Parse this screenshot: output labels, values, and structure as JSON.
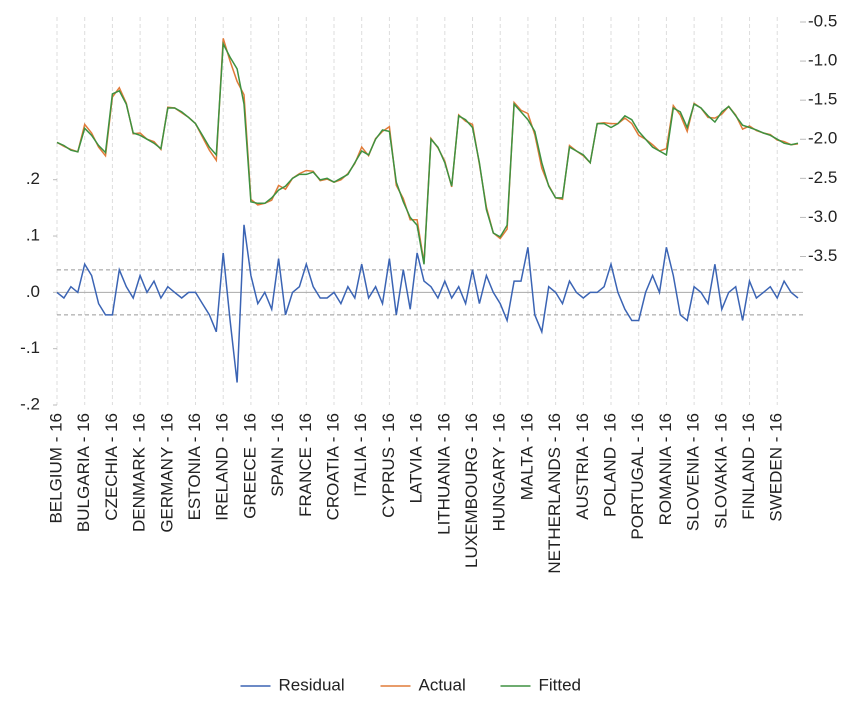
{
  "chart_data": {
    "type": "line",
    "categories": [
      "BELGIUM - 16",
      null,
      null,
      null,
      "BULGARIA - 16",
      null,
      null,
      null,
      "CZECHIA - 16",
      null,
      null,
      null,
      "DENMARK - 16",
      null,
      null,
      null,
      "GERMANY - 16",
      null,
      null,
      null,
      "ESTONIA - 16",
      null,
      null,
      null,
      "IRELAND - 16",
      null,
      null,
      null,
      "GREECE - 16",
      null,
      null,
      null,
      "SPAIN - 16",
      null,
      null,
      null,
      "FRANCE - 16",
      null,
      null,
      null,
      "CROATIA - 16",
      null,
      null,
      null,
      "ITALIA - 16",
      null,
      null,
      null,
      "CYPRUS - 16",
      null,
      null,
      null,
      "LATVIA - 16",
      null,
      null,
      null,
      "LITHUANIA - 16",
      null,
      null,
      null,
      "LUXEMBOURG - 16",
      null,
      null,
      null,
      "HUNGARY - 16",
      null,
      null,
      null,
      "MALTA - 16",
      null,
      null,
      null,
      "NETHERLANDS - 16",
      null,
      null,
      null,
      "AUSTRIA - 16",
      null,
      null,
      null,
      "POLAND - 16",
      null,
      null,
      null,
      "PORTUGAL - 16",
      null,
      null,
      null,
      "ROMANIA - 16",
      null,
      null,
      null,
      "SLOVENIA - 16",
      null,
      null,
      null,
      "SLOVAKIA - 16",
      null,
      null,
      null,
      "FINLAND - 16",
      null,
      null,
      null,
      "SWEDEN - 16",
      null,
      null,
      null
    ],
    "series": [
      {
        "name": "Residual",
        "color": "#3b64b4",
        "axis": "y",
        "values": [
          0.0,
          -0.01,
          0.01,
          0.0,
          0.05,
          0.03,
          -0.02,
          -0.04,
          -0.04,
          0.04,
          0.01,
          -0.01,
          0.03,
          0.0,
          0.02,
          -0.01,
          0.01,
          0.0,
          -0.01,
          0.0,
          0.0,
          -0.02,
          -0.04,
          -0.07,
          0.07,
          -0.05,
          -0.16,
          0.12,
          0.03,
          -0.02,
          0.0,
          -0.03,
          0.06,
          -0.04,
          0.0,
          0.01,
          0.05,
          0.01,
          -0.01,
          -0.01,
          0.0,
          -0.02,
          0.01,
          -0.01,
          0.05,
          -0.01,
          0.01,
          -0.02,
          0.06,
          -0.04,
          0.04,
          -0.03,
          0.07,
          0.02,
          0.01,
          -0.01,
          0.02,
          -0.01,
          0.01,
          -0.02,
          0.04,
          -0.02,
          0.03,
          0.0,
          -0.02,
          -0.05,
          0.02,
          0.02,
          0.08,
          -0.04,
          -0.07,
          0.01,
          0.0,
          -0.02,
          0.02,
          0.0,
          -0.01,
          0.0,
          0.0,
          0.01,
          0.05,
          0.0,
          -0.03,
          -0.05,
          -0.05,
          0.0,
          0.03,
          0.0,
          0.08,
          0.03,
          -0.04,
          -0.05,
          0.01,
          0.0,
          -0.02,
          0.05,
          -0.03,
          0.0,
          0.01,
          -0.05,
          0.02,
          -0.01,
          0.0,
          0.01,
          -0.01,
          0.02,
          0.0,
          -0.01
        ]
      },
      {
        "name": "Actual",
        "color": "#e07b39",
        "axis": "y2",
        "values": [
          -2.04,
          -2.09,
          -2.13,
          -2.16,
          -1.81,
          -1.92,
          -2.1,
          -2.21,
          -1.46,
          -1.34,
          -1.54,
          -1.93,
          -1.92,
          -2.0,
          -2.03,
          -2.13,
          -1.59,
          -1.6,
          -1.66,
          -1.72,
          -1.8,
          -1.97,
          -2.14,
          -2.27,
          -0.71,
          -1.0,
          -1.26,
          -1.43,
          -2.77,
          -2.84,
          -2.82,
          -2.78,
          -2.59,
          -2.64,
          -2.5,
          -2.44,
          -2.4,
          -2.41,
          -2.53,
          -2.51,
          -2.55,
          -2.52,
          -2.44,
          -2.31,
          -2.1,
          -2.21,
          -1.99,
          -1.9,
          -1.84,
          -2.59,
          -2.76,
          -3.03,
          -3.03,
          -3.58,
          -1.99,
          -2.11,
          -2.28,
          -2.61,
          -1.69,
          -1.77,
          -1.81,
          -2.32,
          -2.87,
          -3.2,
          -3.27,
          -3.15,
          -1.53,
          -1.63,
          -1.67,
          -1.94,
          -2.37,
          -2.59,
          -2.75,
          -2.77,
          -2.08,
          -2.15,
          -2.21,
          -2.3,
          -1.8,
          -1.79,
          -1.8,
          -1.8,
          -1.73,
          -1.8,
          -1.95,
          -2.0,
          -2.07,
          -2.15,
          -2.12,
          -1.57,
          -1.69,
          -1.9,
          -1.54,
          -1.6,
          -1.72,
          -1.73,
          -1.68,
          -1.58,
          -1.69,
          -1.87,
          -1.83,
          -1.89,
          -1.92,
          -1.94,
          -2.01,
          -2.03,
          -2.07,
          -2.06
        ]
      },
      {
        "name": "Fitted",
        "color": "#3e9140",
        "axis": "y2",
        "values": [
          -2.04,
          -2.08,
          -2.14,
          -2.16,
          -1.86,
          -1.95,
          -2.08,
          -2.17,
          -1.42,
          -1.38,
          -1.55,
          -1.92,
          -1.95,
          -2.0,
          -2.05,
          -2.12,
          -1.6,
          -1.6,
          -1.65,
          -1.72,
          -1.8,
          -1.95,
          -2.1,
          -2.2,
          -0.78,
          -0.95,
          -1.1,
          -1.55,
          -2.8,
          -2.82,
          -2.82,
          -2.75,
          -2.65,
          -2.6,
          -2.5,
          -2.45,
          -2.45,
          -2.42,
          -2.52,
          -2.5,
          -2.55,
          -2.5,
          -2.45,
          -2.3,
          -2.15,
          -2.2,
          -2.0,
          -1.88,
          -1.9,
          -2.55,
          -2.8,
          -3.0,
          -3.1,
          -3.6,
          -2.0,
          -2.1,
          -2.3,
          -2.6,
          -1.7,
          -1.75,
          -1.85,
          -2.3,
          -2.9,
          -3.2,
          -3.25,
          -3.1,
          -1.55,
          -1.65,
          -1.75,
          -1.9,
          -2.3,
          -2.6,
          -2.75,
          -2.75,
          -2.1,
          -2.15,
          -2.2,
          -2.3,
          -1.8,
          -1.8,
          -1.85,
          -1.8,
          -1.7,
          -1.75,
          -1.9,
          -2.0,
          -2.1,
          -2.15,
          -2.2,
          -1.6,
          -1.65,
          -1.85,
          -1.55,
          -1.6,
          -1.7,
          -1.78,
          -1.65,
          -1.58,
          -1.7,
          -1.82,
          -1.85,
          -1.88,
          -1.92,
          -1.95,
          -2.0,
          -2.05,
          -2.07,
          -2.05
        ]
      }
    ],
    "ylim": [
      -0.2,
      0.48
    ],
    "yticks": [
      {
        "value": -0.2,
        "label": "-.2"
      },
      {
        "value": -0.1,
        "label": "-.1"
      },
      {
        "value": 0,
        "label": ".0"
      },
      {
        "value": 0.1,
        "label": ".1"
      },
      {
        "value": 0.2,
        "label": ".2"
      }
    ],
    "y2lim": [
      -5.4,
      -0.5
    ],
    "y2ticks": [
      -0.5,
      {
        "value": -1,
        "label": "-1.0"
      },
      -1.5,
      {
        "value": -2,
        "label": "-2.0"
      },
      -2.5,
      {
        "value": -3,
        "label": "-3.0"
      },
      -3.5
    ],
    "zero_line": true,
    "reference_lines": [
      -0.04,
      0.04
    ],
    "grid": "x",
    "legend": "bottom"
  }
}
